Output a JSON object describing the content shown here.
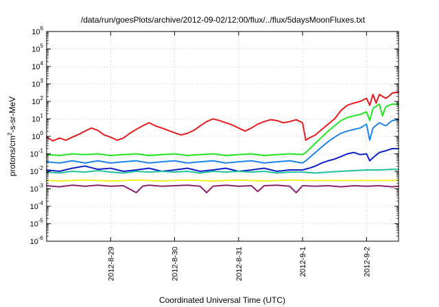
{
  "chart_data": {
    "type": "line",
    "title": "/data/run/goesPlots/archive/2012-09-02/12:00/flux/../flux/5daysMoonFluxes.txt",
    "xlabel": "Coordinated Universal Time (UTC)",
    "ylabel": {
      "prefix": "protons/cm",
      "exponent": "2",
      "suffix": "-s-sr-MeV"
    },
    "y_scale": "log",
    "ylim": [
      1e-06,
      1000000.0
    ],
    "y_ticks": [
      {
        "exp": -6,
        "base": "10",
        "sup": "-6"
      },
      {
        "exp": -5,
        "base": "10",
        "sup": "-5"
      },
      {
        "exp": -4,
        "base": "10",
        "sup": "-4"
      },
      {
        "exp": -3,
        "base": "10",
        "sup": "-3"
      },
      {
        "exp": -2,
        "base": "10",
        "sup": "-2"
      },
      {
        "exp": -1,
        "base": "10",
        "sup": "-1"
      },
      {
        "exp": 0,
        "base": "10",
        "sup": "0"
      },
      {
        "exp": 1,
        "base": "10",
        "sup": "1"
      },
      {
        "exp": 2,
        "base": "10",
        "sup": "2"
      },
      {
        "exp": 3,
        "base": "10",
        "sup": "3"
      },
      {
        "exp": 4,
        "base": "10",
        "sup": "4"
      },
      {
        "exp": 5,
        "base": "10",
        "sup": "5"
      },
      {
        "exp": 6,
        "base": "10",
        "sup": "6"
      }
    ],
    "x_range_days": [
      0,
      5.5
    ],
    "x_ticks": [
      {
        "day": 1,
        "label": "2012-8-29"
      },
      {
        "day": 2,
        "label": "2012-8-30"
      },
      {
        "day": 3,
        "label": "2012-8-31"
      },
      {
        "day": 4,
        "label": "2012-9-1"
      },
      {
        "day": 5,
        "label": "2012-9-2"
      }
    ],
    "grid": true,
    "series": [
      {
        "color": "#e8191a",
        "points": [
          [
            0.0,
            0.9
          ],
          [
            0.1,
            0.55
          ],
          [
            0.2,
            0.8
          ],
          [
            0.3,
            0.6
          ],
          [
            0.4,
            0.9
          ],
          [
            0.5,
            1.3
          ],
          [
            0.6,
            2.0
          ],
          [
            0.7,
            3.0
          ],
          [
            0.8,
            2.2
          ],
          [
            0.9,
            1.2
          ],
          [
            1.0,
            0.9
          ],
          [
            1.1,
            0.6
          ],
          [
            1.2,
            0.8
          ],
          [
            1.3,
            1.5
          ],
          [
            1.4,
            2.5
          ],
          [
            1.5,
            4.0
          ],
          [
            1.6,
            6.0
          ],
          [
            1.7,
            4.0
          ],
          [
            1.8,
            3.0
          ],
          [
            1.9,
            2.2
          ],
          [
            2.0,
            1.6
          ],
          [
            2.1,
            1.2
          ],
          [
            2.2,
            1.5
          ],
          [
            2.3,
            2.2
          ],
          [
            2.4,
            4.0
          ],
          [
            2.5,
            7.0
          ],
          [
            2.6,
            10.0
          ],
          [
            2.7,
            8.0
          ],
          [
            2.8,
            6.0
          ],
          [
            2.9,
            4.5
          ],
          [
            3.0,
            3.0
          ],
          [
            3.1,
            2.0
          ],
          [
            3.2,
            3.0
          ],
          [
            3.3,
            5.0
          ],
          [
            3.4,
            7.0
          ],
          [
            3.5,
            9.0
          ],
          [
            3.6,
            8.0
          ],
          [
            3.7,
            6.0
          ],
          [
            3.8,
            7.0
          ],
          [
            3.9,
            9.0
          ],
          [
            4.0,
            6.0
          ],
          [
            4.05,
            0.6
          ],
          [
            4.1,
            0.8
          ],
          [
            4.2,
            1.2
          ],
          [
            4.3,
            2.5
          ],
          [
            4.4,
            5.0
          ],
          [
            4.5,
            10.0
          ],
          [
            4.6,
            30.0
          ],
          [
            4.7,
            60.0
          ],
          [
            4.8,
            80.0
          ],
          [
            4.9,
            100.0
          ],
          [
            5.0,
            150.0
          ],
          [
            5.05,
            60.0
          ],
          [
            5.1,
            250.0
          ],
          [
            5.15,
            80.0
          ],
          [
            5.2,
            250.0
          ],
          [
            5.3,
            150.0
          ],
          [
            5.35,
            200.0
          ],
          [
            5.4,
            300.0
          ],
          [
            5.5,
            350.0
          ]
        ]
      },
      {
        "color": "#1fe81f",
        "points": [
          [
            0.0,
            0.09
          ],
          [
            0.2,
            0.08
          ],
          [
            0.4,
            0.1
          ],
          [
            0.6,
            0.09
          ],
          [
            0.8,
            0.1
          ],
          [
            1.0,
            0.08
          ],
          [
            1.2,
            0.09
          ],
          [
            1.4,
            0.1
          ],
          [
            1.6,
            0.08
          ],
          [
            1.8,
            0.09
          ],
          [
            2.0,
            0.1
          ],
          [
            2.2,
            0.08
          ],
          [
            2.4,
            0.09
          ],
          [
            2.6,
            0.1
          ],
          [
            2.8,
            0.08
          ],
          [
            3.0,
            0.09
          ],
          [
            3.2,
            0.1
          ],
          [
            3.4,
            0.08
          ],
          [
            3.6,
            0.09
          ],
          [
            3.8,
            0.1
          ],
          [
            4.0,
            0.09
          ],
          [
            4.05,
            0.12
          ],
          [
            4.2,
            0.4
          ],
          [
            4.3,
            0.9
          ],
          [
            4.4,
            2.0
          ],
          [
            4.5,
            4.0
          ],
          [
            4.6,
            8.0
          ],
          [
            4.7,
            12.0
          ],
          [
            4.8,
            15.0
          ],
          [
            4.9,
            18.0
          ],
          [
            5.0,
            25.0
          ],
          [
            5.05,
            8.0
          ],
          [
            5.1,
            40.0
          ],
          [
            5.2,
            70.0
          ],
          [
            5.25,
            15.0
          ],
          [
            5.3,
            50.0
          ],
          [
            5.4,
            70.0
          ],
          [
            5.5,
            70.0
          ]
        ]
      },
      {
        "color": "#1a82e8",
        "points": [
          [
            0.0,
            0.035
          ],
          [
            0.2,
            0.03
          ],
          [
            0.4,
            0.04
          ],
          [
            0.6,
            0.03
          ],
          [
            0.8,
            0.04
          ],
          [
            1.0,
            0.03
          ],
          [
            1.2,
            0.035
          ],
          [
            1.4,
            0.04
          ],
          [
            1.6,
            0.03
          ],
          [
            1.8,
            0.035
          ],
          [
            2.0,
            0.04
          ],
          [
            2.2,
            0.03
          ],
          [
            2.4,
            0.035
          ],
          [
            2.6,
            0.04
          ],
          [
            2.8,
            0.03
          ],
          [
            3.0,
            0.035
          ],
          [
            3.2,
            0.04
          ],
          [
            3.4,
            0.03
          ],
          [
            3.6,
            0.035
          ],
          [
            3.8,
            0.04
          ],
          [
            4.0,
            0.03
          ],
          [
            4.05,
            0.04
          ],
          [
            4.2,
            0.12
          ],
          [
            4.3,
            0.25
          ],
          [
            4.4,
            0.5
          ],
          [
            4.5,
            0.9
          ],
          [
            4.6,
            1.5
          ],
          [
            4.7,
            2.0
          ],
          [
            4.8,
            2.5
          ],
          [
            4.9,
            3.0
          ],
          [
            5.0,
            5.0
          ],
          [
            5.05,
            0.6
          ],
          [
            5.1,
            3.0
          ],
          [
            5.2,
            6.0
          ],
          [
            5.3,
            4.0
          ],
          [
            5.4,
            8.0
          ],
          [
            5.5,
            9.0
          ]
        ]
      },
      {
        "color": "#0a1ecc",
        "points": [
          [
            0.0,
            0.012
          ],
          [
            0.2,
            0.01
          ],
          [
            0.4,
            0.015
          ],
          [
            0.6,
            0.02
          ],
          [
            0.8,
            0.013
          ],
          [
            1.0,
            0.015
          ],
          [
            1.2,
            0.01
          ],
          [
            1.4,
            0.012
          ],
          [
            1.6,
            0.015
          ],
          [
            1.8,
            0.01
          ],
          [
            2.0,
            0.012
          ],
          [
            2.2,
            0.015
          ],
          [
            2.4,
            0.01
          ],
          [
            2.6,
            0.012
          ],
          [
            2.8,
            0.015
          ],
          [
            3.0,
            0.01
          ],
          [
            3.2,
            0.012
          ],
          [
            3.4,
            0.015
          ],
          [
            3.6,
            0.01
          ],
          [
            3.8,
            0.012
          ],
          [
            4.0,
            0.012
          ],
          [
            4.1,
            0.015
          ],
          [
            4.2,
            0.02
          ],
          [
            4.3,
            0.03
          ],
          [
            4.4,
            0.04
          ],
          [
            4.5,
            0.05
          ],
          [
            4.6,
            0.07
          ],
          [
            4.7,
            0.1
          ],
          [
            4.8,
            0.12
          ],
          [
            4.9,
            0.09
          ],
          [
            5.0,
            0.1
          ],
          [
            5.05,
            0.04
          ],
          [
            5.1,
            0.06
          ],
          [
            5.2,
            0.12
          ],
          [
            5.3,
            0.15
          ],
          [
            5.4,
            0.2
          ],
          [
            5.5,
            0.2
          ]
        ]
      },
      {
        "color": "#22c09a",
        "points": [
          [
            0.0,
            0.009
          ],
          [
            0.2,
            0.008
          ],
          [
            0.4,
            0.01
          ],
          [
            0.6,
            0.009
          ],
          [
            0.8,
            0.011
          ],
          [
            1.0,
            0.009
          ],
          [
            1.2,
            0.008
          ],
          [
            1.4,
            0.01
          ],
          [
            1.6,
            0.009
          ],
          [
            1.8,
            0.01
          ],
          [
            2.0,
            0.009
          ],
          [
            2.2,
            0.01
          ],
          [
            2.4,
            0.008
          ],
          [
            2.6,
            0.01
          ],
          [
            2.8,
            0.009
          ],
          [
            3.0,
            0.01
          ],
          [
            3.2,
            0.009
          ],
          [
            3.4,
            0.01
          ],
          [
            3.6,
            0.008
          ],
          [
            3.8,
            0.009
          ],
          [
            4.0,
            0.009
          ],
          [
            4.2,
            0.008
          ],
          [
            4.4,
            0.009
          ],
          [
            4.6,
            0.01
          ],
          [
            4.8,
            0.011
          ],
          [
            5.0,
            0.012
          ],
          [
            5.2,
            0.012
          ],
          [
            5.4,
            0.013
          ],
          [
            5.5,
            0.013
          ]
        ]
      },
      {
        "color": "#f0f01a",
        "points": [
          [
            0.0,
            0.003
          ],
          [
            0.2,
            0.0028
          ],
          [
            0.4,
            0.003
          ],
          [
            0.6,
            0.0032
          ],
          [
            0.8,
            0.003
          ],
          [
            1.0,
            0.0028
          ],
          [
            1.2,
            0.003
          ],
          [
            1.4,
            0.0032
          ],
          [
            1.6,
            0.003
          ],
          [
            1.8,
            0.0028
          ],
          [
            2.0,
            0.003
          ],
          [
            2.2,
            0.0032
          ],
          [
            2.4,
            0.003
          ],
          [
            2.6,
            0.0028
          ],
          [
            2.8,
            0.003
          ],
          [
            3.0,
            0.0032
          ],
          [
            3.2,
            0.003
          ],
          [
            3.4,
            0.0028
          ],
          [
            3.6,
            0.003
          ],
          [
            3.8,
            0.0032
          ],
          [
            4.0,
            0.003
          ],
          [
            4.2,
            0.003
          ],
          [
            4.4,
            0.003
          ],
          [
            4.6,
            0.003
          ],
          [
            4.8,
            0.003
          ],
          [
            5.0,
            0.003
          ],
          [
            5.2,
            0.003
          ],
          [
            5.4,
            0.003
          ],
          [
            5.5,
            0.003
          ]
        ]
      },
      {
        "color": "#8a1f6a",
        "points": [
          [
            0.0,
            0.0015
          ],
          [
            0.2,
            0.0013
          ],
          [
            0.4,
            0.0016
          ],
          [
            0.6,
            0.0014
          ],
          [
            0.8,
            0.0016
          ],
          [
            1.0,
            0.0014
          ],
          [
            1.2,
            0.0015
          ],
          [
            1.4,
            0.0006
          ],
          [
            1.5,
            0.0014
          ],
          [
            1.6,
            0.0016
          ],
          [
            1.8,
            0.0014
          ],
          [
            2.0,
            0.0015
          ],
          [
            2.2,
            0.0016
          ],
          [
            2.4,
            0.0014
          ],
          [
            2.5,
            0.0006
          ],
          [
            2.6,
            0.0014
          ],
          [
            2.8,
            0.0016
          ],
          [
            3.0,
            0.0014
          ],
          [
            3.2,
            0.0015
          ],
          [
            3.3,
            0.0007
          ],
          [
            3.4,
            0.0015
          ],
          [
            3.6,
            0.0016
          ],
          [
            3.8,
            0.0014
          ],
          [
            3.9,
            0.0006
          ],
          [
            4.0,
            0.0015
          ],
          [
            4.2,
            0.0014
          ],
          [
            4.4,
            0.0015
          ],
          [
            4.6,
            0.0013
          ],
          [
            4.8,
            0.0015
          ],
          [
            5.0,
            0.0014
          ],
          [
            5.2,
            0.0015
          ],
          [
            5.4,
            0.0013
          ],
          [
            5.5,
            0.0014
          ]
        ]
      }
    ]
  }
}
